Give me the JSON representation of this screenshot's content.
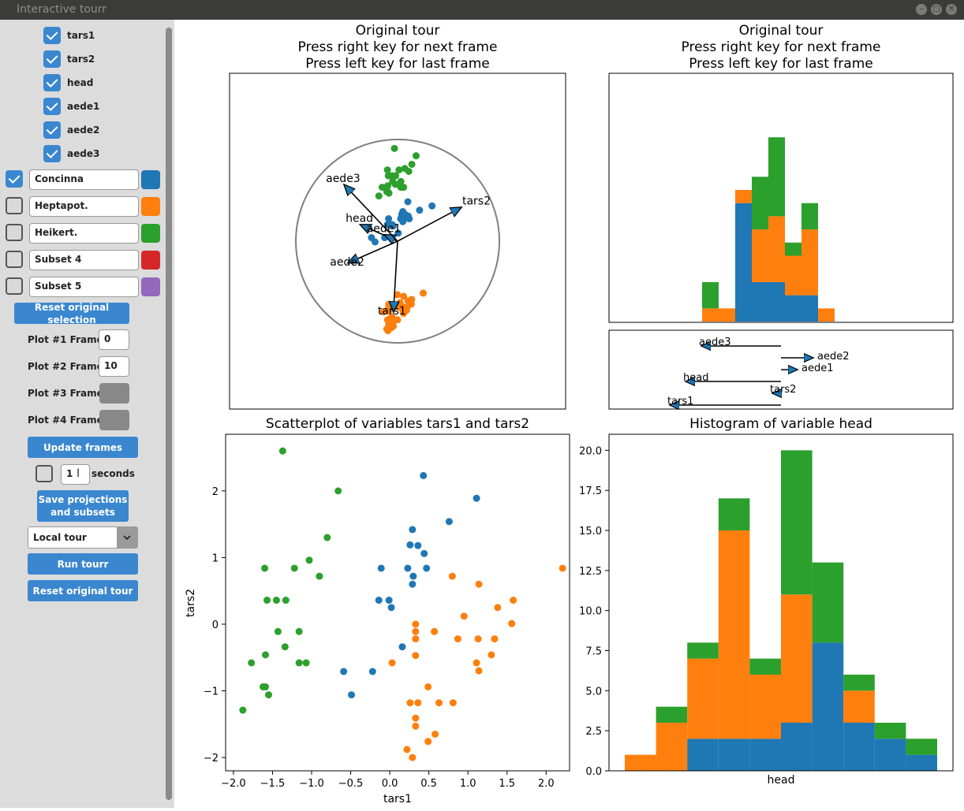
{
  "window": {
    "title": "Interactive tourr"
  },
  "sidebar": {
    "variables": [
      {
        "label": "tars1",
        "checked": true
      },
      {
        "label": "tars2",
        "checked": true
      },
      {
        "label": "head",
        "checked": true
      },
      {
        "label": "aede1",
        "checked": true
      },
      {
        "label": "aede2",
        "checked": true
      },
      {
        "label": "aede3",
        "checked": true
      }
    ],
    "subsets": [
      {
        "name": "Concinna",
        "checked": true,
        "color": "#1f77b4"
      },
      {
        "name": "Heptapot.",
        "checked": false,
        "color": "#ff7f0e"
      },
      {
        "name": "Heikert.",
        "checked": false,
        "color": "#2ca02c"
      },
      {
        "name": "Subset 4",
        "checked": false,
        "color": "#d62728"
      },
      {
        "name": "Subset 5",
        "checked": false,
        "color": "#9467bd"
      }
    ],
    "reset_selection_label": "Reset original selection",
    "frames": [
      {
        "label": "Plot #1 Frame",
        "value": "0"
      },
      {
        "label": "Plot #2 Frame",
        "value": "10"
      },
      {
        "label": "Plot #3 Frame",
        "value": ""
      },
      {
        "label": "Plot #4 Frame",
        "value": ""
      }
    ],
    "update_frames_label": "Update frames",
    "seconds_value": "1",
    "seconds_label": "seconds",
    "save_label_line1": "Save projections",
    "save_label_line2": "and subsets",
    "tour_type": "Local tour",
    "run_label": "Run tourr",
    "reset_tour_label": "Reset original tour"
  },
  "plots": {
    "tour1": {
      "title_lines": [
        "Original tour",
        "Press right key for next frame",
        "Press left key for last frame"
      ],
      "axes": [
        {
          "label": "tars1",
          "dx": -0.04,
          "dy": -0.69
        },
        {
          "label": "tars2",
          "dx": 0.62,
          "dy": 0.33
        },
        {
          "label": "head",
          "dx": -0.36,
          "dy": 0.16
        },
        {
          "label": "aede1",
          "dx": -0.12,
          "dy": 0.06
        },
        {
          "label": "aede2",
          "dx": -0.48,
          "dy": -0.21
        },
        {
          "label": "aede3",
          "dx": -0.52,
          "dy": 0.55
        }
      ]
    },
    "tour2": {
      "title_lines": [
        "Original tour",
        "Press right key for next frame",
        "Press left key for last frame"
      ],
      "hist_stack": [
        {
          "b": 0,
          "o": 1,
          "g": 2
        },
        {
          "b": 0,
          "o": 1,
          "g": 0
        },
        {
          "b": 9,
          "o": 1,
          "g": 0
        },
        {
          "b": 3,
          "o": 4,
          "g": 4
        },
        {
          "b": 3,
          "o": 5,
          "g": 6
        },
        {
          "b": 2,
          "o": 3,
          "g": 1
        },
        {
          "b": 2,
          "o": 5,
          "g": 2
        },
        {
          "b": 0,
          "o": 1,
          "g": 0
        }
      ],
      "axes": [
        {
          "label": "aede3",
          "v": -1.0
        },
        {
          "label": "aede2",
          "v": 0.4
        },
        {
          "label": "aede1",
          "v": 0.2
        },
        {
          "label": "head",
          "v": -1.2
        },
        {
          "label": "tars2",
          "v": -0.1
        },
        {
          "label": "tars1",
          "v": -1.4
        }
      ]
    }
  },
  "chart_data": [
    {
      "type": "scatter",
      "title": "Scatterplot of variables tars1 and tars2",
      "xlabel": "tars1",
      "ylabel": "tars2",
      "xlim": [
        -2.1,
        2.3
      ],
      "ylim": [
        -2.2,
        2.85
      ],
      "xticks": [
        "−2.0",
        "−1.5",
        "−1.0",
        "−0.5",
        "0.0",
        "0.5",
        "1.0",
        "1.5",
        "2.0"
      ],
      "yticks": [
        "−2",
        "−1",
        "0",
        "1",
        "2"
      ],
      "series": [
        {
          "name": "Concinna",
          "color": "#1f77b4",
          "points": [
            [
              0.43,
              2.23
            ],
            [
              1.11,
              1.89
            ],
            [
              0.76,
              1.54
            ],
            [
              0.29,
              1.42
            ],
            [
              0.26,
              1.19
            ],
            [
              0.36,
              1.18
            ],
            [
              0.44,
              1.06
            ],
            [
              -0.11,
              0.84
            ],
            [
              0.23,
              0.84
            ],
            [
              0.47,
              0.84
            ],
            [
              0.3,
              0.72
            ],
            [
              0.29,
              0.6
            ],
            [
              -0.14,
              0.36
            ],
            [
              -0.01,
              0.36
            ],
            [
              0.02,
              0.25
            ],
            [
              0.16,
              -0.34
            ],
            [
              -0.59,
              -0.71
            ],
            [
              -0.22,
              -0.71
            ],
            [
              -0.49,
              -1.06
            ]
          ]
        },
        {
          "name": "Heptapot.",
          "color": "#ff7f0e",
          "points": [
            [
              2.21,
              0.84
            ],
            [
              0.8,
              0.72
            ],
            [
              1.14,
              0.6
            ],
            [
              1.58,
              0.36
            ],
            [
              1.38,
              0.25
            ],
            [
              0.95,
              0.12
            ],
            [
              1.56,
              0.01
            ],
            [
              0.33,
              0.0
            ],
            [
              0.57,
              -0.11
            ],
            [
              0.33,
              -0.11
            ],
            [
              0.87,
              -0.22
            ],
            [
              1.13,
              -0.22
            ],
            [
              1.34,
              -0.22
            ],
            [
              0.33,
              -0.22
            ],
            [
              1.3,
              -0.46
            ],
            [
              0.33,
              -0.47
            ],
            [
              0.03,
              -0.58
            ],
            [
              1.11,
              -0.58
            ],
            [
              1.14,
              -0.7
            ],
            [
              0.49,
              -0.94
            ],
            [
              0.26,
              -1.18
            ],
            [
              0.36,
              -1.18
            ],
            [
              0.63,
              -1.18
            ],
            [
              0.81,
              -1.18
            ],
            [
              0.33,
              -1.41
            ],
            [
              0.33,
              -1.53
            ],
            [
              0.58,
              -1.65
            ],
            [
              0.49,
              -1.76
            ],
            [
              0.22,
              -1.88
            ],
            [
              0.29,
              -2.0
            ]
          ]
        },
        {
          "name": "Heikert.",
          "color": "#2ca02c",
          "points": [
            [
              -1.37,
              2.6
            ],
            [
              -0.66,
              2.0
            ],
            [
              -0.8,
              1.3
            ],
            [
              -1.6,
              0.84
            ],
            [
              -1.22,
              0.84
            ],
            [
              -1.03,
              0.96
            ],
            [
              -0.9,
              0.72
            ],
            [
              -1.57,
              0.36
            ],
            [
              -1.45,
              0.36
            ],
            [
              -1.33,
              0.36
            ],
            [
              -1.43,
              -0.11
            ],
            [
              -1.16,
              -0.11
            ],
            [
              -1.34,
              -0.34
            ],
            [
              -1.59,
              -0.46
            ],
            [
              -1.16,
              -0.58
            ],
            [
              -1.07,
              -0.58
            ],
            [
              -1.77,
              -0.58
            ],
            [
              -1.59,
              -0.94
            ],
            [
              -1.62,
              -0.94
            ],
            [
              -1.55,
              -1.06
            ],
            [
              -1.88,
              -1.29
            ]
          ]
        }
      ]
    },
    {
      "type": "bar",
      "title": "Histogram of variable head",
      "xlabel": "head",
      "ylabel": "",
      "ylim": [
        0,
        21
      ],
      "yticks": [
        "0.0",
        "2.5",
        "5.0",
        "7.5",
        "10.0",
        "12.5",
        "15.0",
        "17.5",
        "20.0"
      ],
      "series": [
        {
          "name": "Concinna",
          "color": "#1f77b4",
          "values": [
            0,
            0,
            2,
            2,
            2,
            3,
            8,
            3,
            2,
            1
          ]
        },
        {
          "name": "Heptapot.",
          "color": "#ff7f0e",
          "values": [
            1,
            3,
            5,
            13,
            4,
            8,
            0,
            2,
            0,
            0
          ]
        },
        {
          "name": "Heikert.",
          "color": "#2ca02c",
          "values": [
            0,
            1,
            1,
            2,
            1,
            9,
            5,
            1,
            1,
            1
          ]
        }
      ]
    }
  ]
}
